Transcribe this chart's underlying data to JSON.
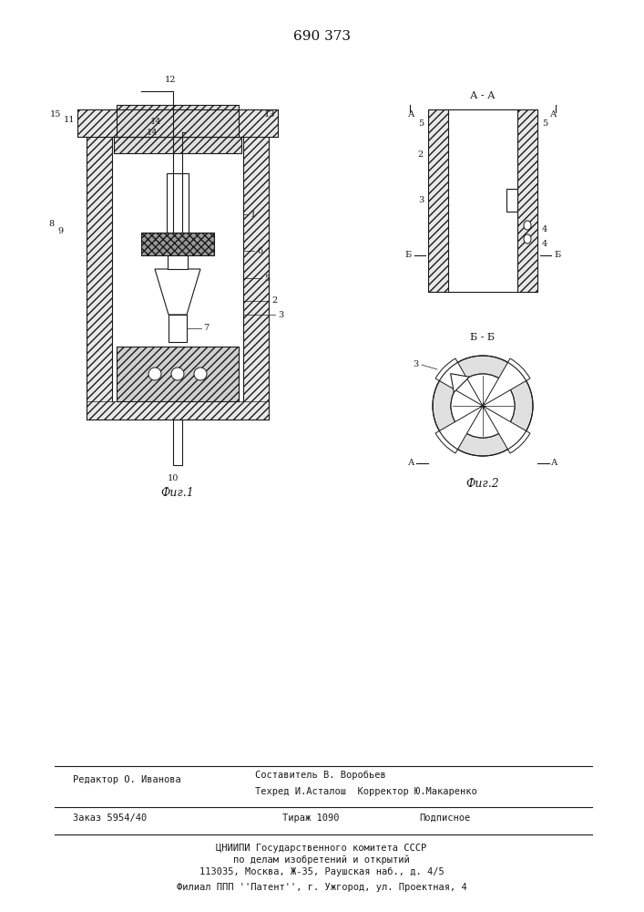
{
  "patent_number": "690 373",
  "fig1_label": "Фиг.1",
  "fig2_label": "Фиг.2",
  "section_aa": "А - А",
  "section_bb": "Б - Б",
  "footer_line1_left": "Редактор О. Иванова",
  "footer_line1_right": "Составитель В. Воробьев",
  "footer_line2_right": "Техред И.Асталош  Корректор Ю.Макаренко",
  "footer_line3_left": "Заказ 5954/40",
  "footer_line3_mid": "Тираж 1090",
  "footer_line3_right": "Подписное",
  "footer_line4": "ЦНИИПИ Государственного комитета СССР",
  "footer_line5": "по делам изобретений и открытий",
  "footer_line6": "113035, Москва, Ж-35, Раушская наб., д. 4/5",
  "footer_line7": "Филиал ППП ''Патент'', г. Ужгород, ул. Проектная, 4",
  "bg_color": "#ffffff",
  "line_color": "#1a1a1a",
  "hatch_color": "#555555",
  "text_color": "#111111"
}
